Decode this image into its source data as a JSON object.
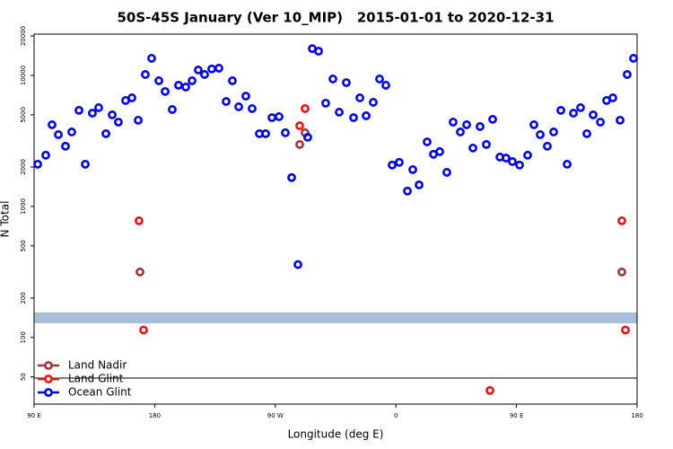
{
  "chart_data": {
    "type": "scatter",
    "title": "50S-45S January (Ver 10_MIP)   2015-01-01 to 2020-12-31",
    "x_label": "Longitude (deg E)",
    "y_label": "N Total",
    "y_log": true,
    "legend": "lower left",
    "xlim": [
      90,
      540
    ],
    "xticks": [
      {
        "value": 90,
        "label": "90 E"
      },
      180,
      {
        "value": 270,
        "label": "90 W"
      },
      {
        "value": 360,
        "label": "0"
      },
      {
        "value": 450,
        "label": "90 E"
      },
      {
        "value": 540,
        "label": "180"
      }
    ],
    "ylim": [
      31,
      20650
    ],
    "yticks": [
      50,
      100,
      200,
      500,
      1000,
      2000,
      5000,
      10000,
      20000
    ],
    "series": [
      {
        "name": "Land Nadir",
        "color": "#a0363a",
        "x": [
          169,
          288.2,
          292.2,
          528.6
        ],
        "values": [
          316,
          2970,
          3650,
          316
        ]
      },
      {
        "name": "Land Glint",
        "color": "#ee1111",
        "x": [
          168.3,
          171.7,
          288.2,
          292.2,
          430.2,
          528.6,
          531.3
        ],
        "values": [
          777,
          114,
          4130,
          5580,
          39.4,
          777,
          114
        ]
      },
      {
        "name": "Ocean Glint",
        "color": "#0000ee",
        "x": [
          92.7,
          98.7,
          103.4,
          108.1,
          113.4,
          118.1,
          123.5,
          128.2,
          133.5,
          138.2,
          143.6,
          148.3,
          152.9,
          158.3,
          163,
          167.7,
          173,
          177.7,
          183.1,
          187.8,
          193.1,
          197.8,
          203.2,
          207.9,
          212.5,
          217.2,
          222.6,
          227.9,
          233.3,
          238,
          242.7,
          248,
          252.7,
          258.1,
          262.8,
          267.5,
          272.8,
          277.5,
          282.2,
          286.9,
          294.2,
          297.6,
          302.3,
          307.6,
          313,
          317.7,
          323,
          328.4,
          333.1,
          337.8,
          343.1,
          347.8,
          352.5,
          357.2,
          362.5,
          368.6,
          372.6,
          377.3,
          383.3,
          388,
          392.7,
          398,
          402.7,
          408.1,
          412.8,
          417.5,
          422.8,
          427.5,
          432.2,
          437.6,
          442.2,
          446.9,
          452.3,
          458.3,
          463,
          467.7,
          473,
          477.7,
          483.1,
          487.8,
          492.5,
          497.8,
          502.5,
          507.2,
          512.6,
          517.2,
          521.9,
          527.3,
          532.6,
          537.3
        ],
        "values": [
          2100,
          2460,
          4200,
          3530,
          2880,
          3700,
          5410,
          2100,
          5150,
          5670,
          3590,
          5000,
          4400,
          6430,
          6740,
          4550,
          10160,
          13500,
          9100,
          7540,
          5490,
          8410,
          8150,
          9100,
          11000,
          10160,
          11200,
          11350,
          6320,
          9100,
          5760,
          6950,
          5580,
          3590,
          3590,
          4760,
          4840,
          3650,
          1660,
          360,
          3370,
          16000,
          15300,
          6140,
          9390,
          5240,
          8810,
          4760,
          6740,
          4920,
          6230,
          9390,
          8410,
          2070,
          2170,
          1310,
          1910,
          1460,
          3110,
          2500,
          2620,
          1820,
          4400,
          3700,
          4200,
          2790,
          4070,
          2970,
          4620,
          2380,
          2340,
          2200,
          2070,
          2460,
          4200,
          3530,
          2880,
          3700,
          5410,
          2100,
          5150,
          5670,
          3590,
          5000,
          4400,
          6430,
          6740,
          4550,
          10160,
          13500
        ]
      }
    ]
  }
}
